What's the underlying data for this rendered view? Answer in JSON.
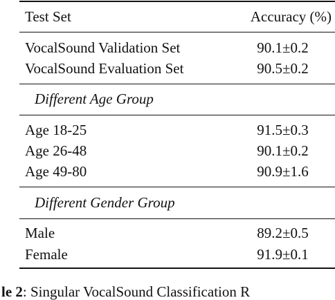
{
  "table": {
    "header": {
      "col1": "Test Set",
      "col2": "Accuracy (%)"
    },
    "sections": [
      {
        "group_label": "",
        "rows": [
          {
            "label": "VocalSound Validation Set",
            "accuracy": "90.1±0.2"
          },
          {
            "label": "VocalSound Evaluation Set",
            "accuracy": "90.5±0.2"
          }
        ]
      },
      {
        "group_label": "Different Age Group",
        "rows": [
          {
            "label": "Age 18-25",
            "accuracy": "91.5±0.3"
          },
          {
            "label": "Age 26-48",
            "accuracy": "90.1±0.2"
          },
          {
            "label": "Age 49-80",
            "accuracy": "90.9±1.6"
          }
        ]
      },
      {
        "group_label": "Different Gender Group",
        "rows": [
          {
            "label": "Male",
            "accuracy": "89.2±0.5"
          },
          {
            "label": "Female",
            "accuracy": "91.9±0.1"
          }
        ]
      }
    ]
  },
  "caption": {
    "label": "le 2",
    "text": ": Singular VocalSound Classification R"
  }
}
